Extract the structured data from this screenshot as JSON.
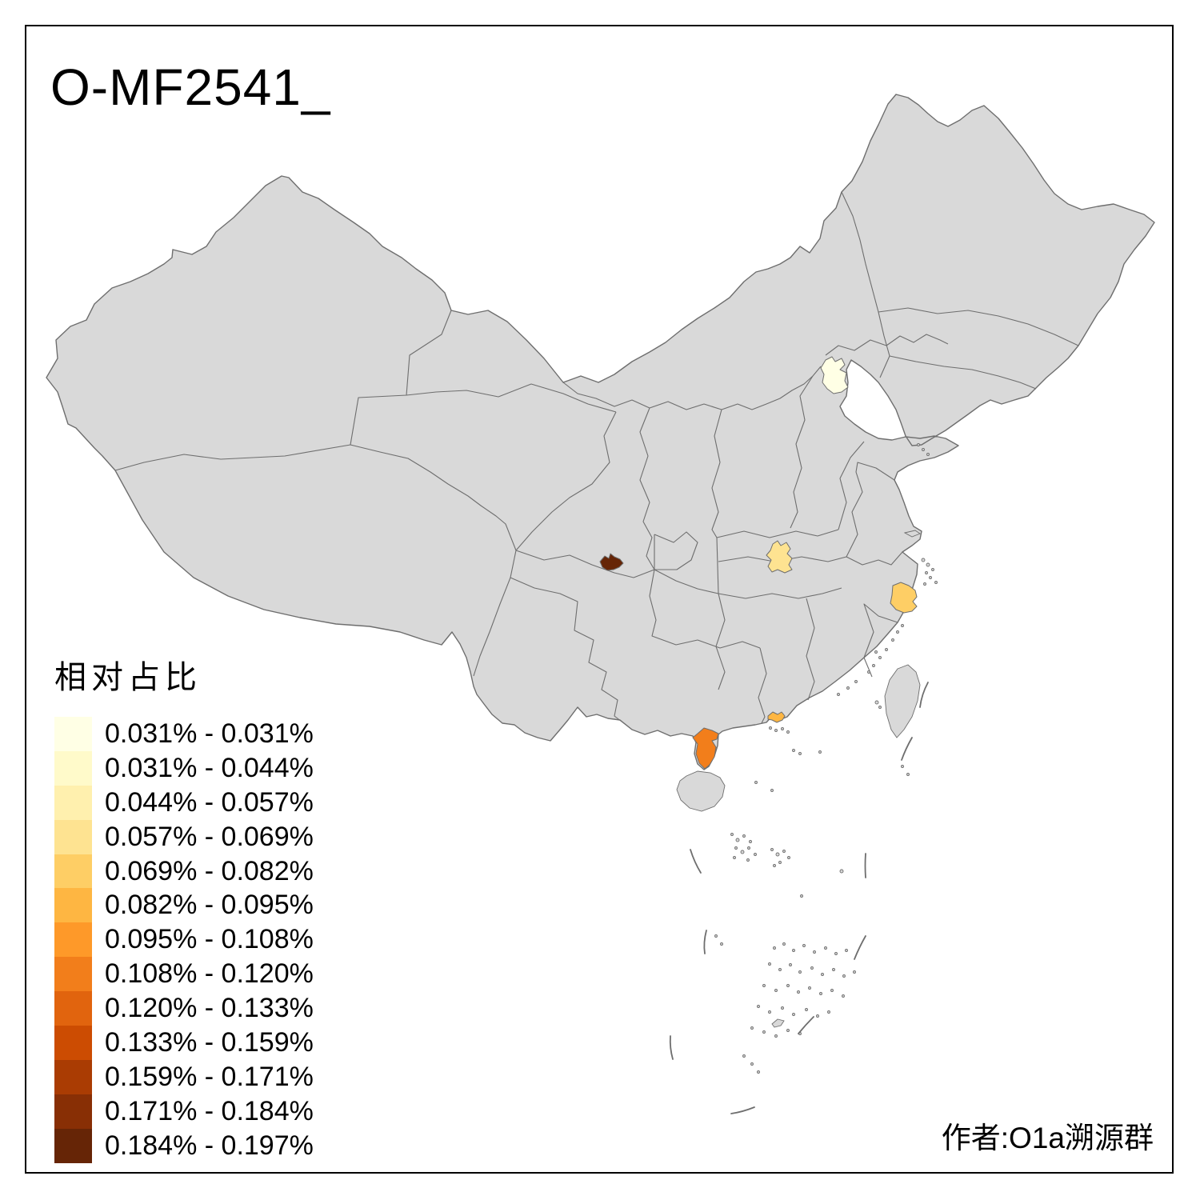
{
  "page": {
    "title": "O-MF2541_",
    "attribution": "作者:O1a溯源群"
  },
  "legend": {
    "title": "相对占比",
    "classes": [
      {
        "label": "0.031% - 0.031%",
        "color": "#FFFFE5"
      },
      {
        "label": "0.031% - 0.044%",
        "color": "#FFFACA"
      },
      {
        "label": "0.044% - 0.057%",
        "color": "#FFF0AE"
      },
      {
        "label": "0.057% - 0.069%",
        "color": "#FEE391"
      },
      {
        "label": "0.069% - 0.082%",
        "color": "#FECE65"
      },
      {
        "label": "0.082% - 0.095%",
        "color": "#FEB642"
      },
      {
        "label": "0.095% - 0.108%",
        "color": "#FE9929"
      },
      {
        "label": "0.108% - 0.120%",
        "color": "#F27E1B"
      },
      {
        "label": "0.120% - 0.133%",
        "color": "#E1640E"
      },
      {
        "label": "0.133% - 0.159%",
        "color": "#CC4C02"
      },
      {
        "label": "0.159% - 0.171%",
        "color": "#AA3C03"
      },
      {
        "label": "0.171% - 0.184%",
        "color": "#882F05"
      },
      {
        "label": "0.184% - 0.197%",
        "color": "#662506"
      }
    ]
  },
  "map": {
    "base_fill": "#D9D9D9",
    "boundary_color": "#6E6E6E",
    "sea_color": "#FFFFFF",
    "regions": [
      {
        "name": "beijing-area",
        "range": "0.031% - 0.031%",
        "color": "#FFFFE5"
      },
      {
        "name": "wuhan-area",
        "range": "0.057% - 0.069%",
        "color": "#FEE391"
      },
      {
        "name": "taizhou-area",
        "range": "0.069% - 0.082%",
        "color": "#FECE65"
      },
      {
        "name": "pearl-river-delta-area",
        "range": "0.082% - 0.095%",
        "color": "#FEB642"
      },
      {
        "name": "zhanjiang-area",
        "range": "0.108% - 0.120%",
        "color": "#F27E1B"
      },
      {
        "name": "chengdu-area",
        "range": "0.184% - 0.197%",
        "color": "#662506"
      }
    ]
  }
}
